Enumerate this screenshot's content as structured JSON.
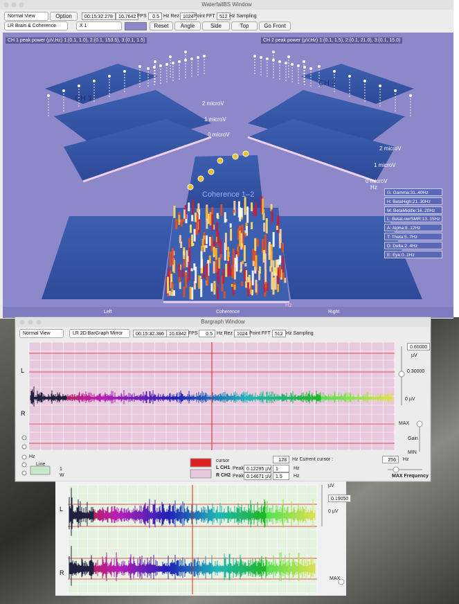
{
  "waterfall_window": {
    "title": "WaterfallBS Window",
    "toolbar": {
      "view": "Normal View",
      "option": "Option",
      "time": "00:15:32.278",
      "fps": "10.7642",
      "fps_unit": "FPS",
      "rez": "0.5",
      "rez_unit": "Hz Rez",
      "fft": "1024",
      "fft_unit": "Point FFT",
      "sampling": "512",
      "sampling_unit": "Hz Sampling",
      "mode": "LR Brain & Coherence",
      "scale": "X 1",
      "buttons": [
        "Reset",
        "Angle",
        "Side",
        "Top",
        "Go Front"
      ]
    },
    "ch1_peak": "CH 1 peak power (µV,Hz) 1:(0.1, 1.0), 2:(0.1, 153.5), 3:(0.1, 1.5)",
    "ch2_peak": "CH 2 peak power (µV,Hz) 1:(0.1, 1.5), 2:(0.1, 21.0), 3:(0.1, 15.0)",
    "panels": {
      "ch1": "CH 1",
      "ch2": "CH 2",
      "coherence": "Coherence 1–2"
    },
    "axis_labels": [
      "2 microV",
      "1 microV",
      "0 microV"
    ],
    "hz": "Hz",
    "bands": [
      "G: Gamma:31..40Hz",
      "H: BetaHigh:21..30Hz",
      "M: BetaMiddle:16..20Hz",
      "L: BetaLow/SMR:13..15Hz",
      "A: Alpha:8..12Hz",
      "T: Theta:5..7Hz",
      "D: Delta:2..4Hz",
      "E: Eye:0..1Hz"
    ],
    "view_buttons": [
      "Left",
      "Coherence",
      "Right"
    ]
  },
  "bargraph_window": {
    "title": "Bargraph Window",
    "toolbar": {
      "view": "Normal View",
      "mode": "LR 2D BarGraph Mirror",
      "time": "00:15:32.386",
      "fps": "10.6342",
      "fps_unit": "FPS",
      "rez": "0.5",
      "rez_unit": "Hz Rez",
      "fft": "1024",
      "fft_unit": "Point FFT",
      "sampling": "512",
      "sampling_unit": "Hz Sampling"
    },
    "channels": [
      "L",
      "R"
    ],
    "scale": {
      "max": "0.60000",
      "unit": "µV",
      "mid": "0.30000",
      "zero": "0 µV"
    },
    "gain": {
      "max": "MAX",
      "label": "Gain",
      "min": "MIN"
    },
    "controls": {
      "hz": "Hz",
      "line": "Line",
      "width1": "1",
      "width2": "W",
      "cursor": "cursor"
    },
    "peaks": [
      {
        "channel": "L CH1",
        "label": "Peak",
        "value": "0.12295 µV",
        "freq": "1",
        "unit": "Hz"
      },
      {
        "channel": "R CH2",
        "label": "Peak",
        "value": "0.14671 µV",
        "freq": "1.5",
        "unit": "Hz"
      }
    ],
    "cursor": {
      "value": "128",
      "label": "Hz Current cursor :",
      "max": "256",
      "unit": "Hz",
      "max_frequency": "MAX Frequency"
    }
  },
  "background_window": {
    "unit": "µV",
    "max": "0.19050",
    "zero": "0 µV",
    "channels": [
      "L",
      "R"
    ],
    "gain_max": "MAX"
  }
}
